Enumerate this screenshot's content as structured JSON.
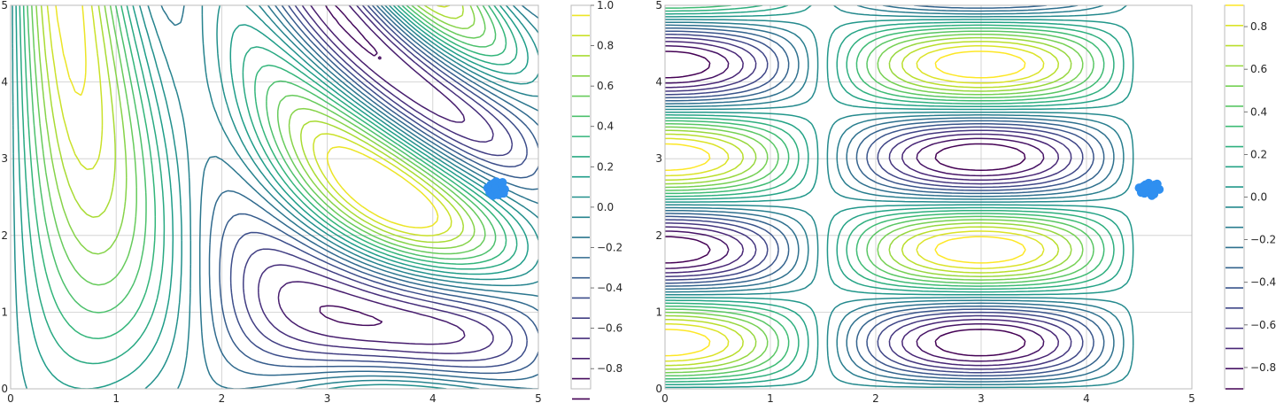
{
  "chart_data": [
    {
      "type": "contour",
      "title": "",
      "xlabel": "",
      "ylabel": "",
      "xlim": [
        0,
        5
      ],
      "ylim": [
        0,
        5
      ],
      "x_ticks": [
        "0",
        "1",
        "2",
        "3",
        "4",
        "5"
      ],
      "y_ticks": [
        "0",
        "1",
        "2",
        "3",
        "4",
        "5"
      ],
      "grid": true,
      "colormap": "viridis",
      "function": "sin(x*y) type field: ridges along hyperbolae x*y = const",
      "levels_range": [
        -0.95,
        0.95
      ],
      "colorbar": {
        "ticks": [
          "−0.8",
          "−0.6",
          "−0.4",
          "−0.2",
          "0.0",
          "0.2",
          "0.4",
          "0.6",
          "0.8",
          "1.0"
        ],
        "tick_values": [
          -0.8,
          -0.6,
          -0.4,
          -0.2,
          0.0,
          0.2,
          0.4,
          0.6,
          0.8,
          1.0
        ],
        "range": [
          -0.9,
          1.0
        ]
      },
      "points": {
        "color": "#2f8ff0",
        "x": [
          4.52,
          4.55,
          4.58,
          4.6,
          4.62,
          4.64,
          4.66,
          4.68,
          4.55,
          4.58,
          4.61,
          4.64,
          4.67,
          4.57,
          4.6,
          4.63,
          4.66,
          4.54,
          4.59,
          4.62
        ],
        "y": [
          2.62,
          2.58,
          2.55,
          2.6,
          2.64,
          2.58,
          2.62,
          2.6,
          2.66,
          2.68,
          2.56,
          2.67,
          2.55,
          2.52,
          2.7,
          2.63,
          2.69,
          2.56,
          2.61,
          2.53
        ]
      }
    },
    {
      "type": "contour",
      "title": "",
      "xlabel": "",
      "ylabel": "",
      "xlim": [
        0,
        5
      ],
      "ylim": [
        0,
        5
      ],
      "x_ticks": [
        "0",
        "1",
        "2",
        "3",
        "4",
        "5"
      ],
      "y_ticks": [
        "0",
        "1",
        "2",
        "3",
        "4",
        "5"
      ],
      "grid": true,
      "colormap": "viridis",
      "function": "cos(3y)·sin(x) type field with band of oscillation near x≈3",
      "levels_range": [
        -0.9,
        0.9
      ],
      "colorbar": {
        "ticks": [
          "−0.8",
          "−0.6",
          "−0.4",
          "−0.2",
          "0.0",
          "0.2",
          "0.4",
          "0.6",
          "0.8"
        ],
        "tick_values": [
          -0.8,
          -0.6,
          -0.4,
          -0.2,
          0.0,
          0.2,
          0.4,
          0.6,
          0.8
        ],
        "range": [
          -0.9,
          0.9
        ]
      },
      "points": {
        "color": "#2f8ff0",
        "x": [
          4.5,
          4.53,
          4.56,
          4.6,
          4.63,
          4.66,
          4.69,
          4.55,
          4.59,
          4.62,
          4.65,
          4.52,
          4.58,
          4.61,
          4.64,
          4.67,
          4.57,
          4.6,
          4.63,
          4.54
        ],
        "y": [
          2.62,
          2.58,
          2.66,
          2.6,
          2.57,
          2.63,
          2.6,
          2.55,
          2.68,
          2.52,
          2.66,
          2.56,
          2.63,
          2.59,
          2.54,
          2.67,
          2.6,
          2.65,
          2.62,
          2.64
        ]
      }
    }
  ]
}
